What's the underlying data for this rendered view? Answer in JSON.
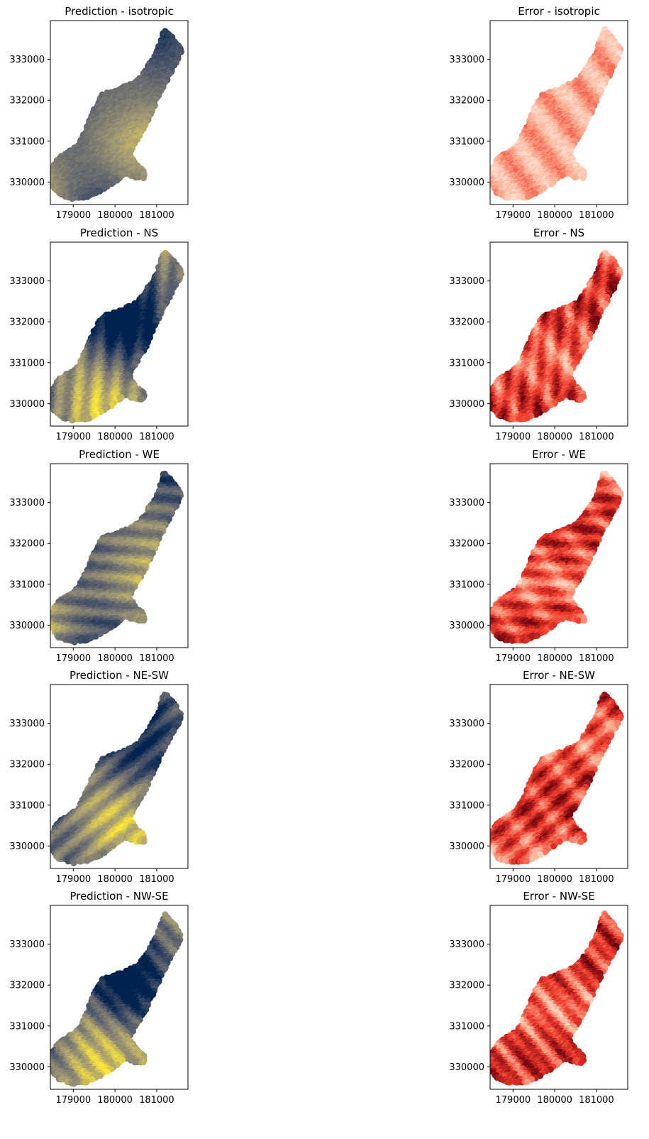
{
  "figure": {
    "layout": "5 rows x 2 columns; left column = kriging prediction maps (cividis colormap), right column = kriging error maps (Reds colormap)",
    "prediction_colormap": [
      "#00224e",
      "#575d6d",
      "#a59c74",
      "#fee838"
    ],
    "error_colormap": [
      "#fff5f0",
      "#fcae91",
      "#ef3b2c",
      "#67000d"
    ]
  },
  "chart_data": [
    {
      "type": "scatter",
      "title": "Prediction - isotropic",
      "variant": "isotropic",
      "kind": "prediction",
      "xticks": [
        179000,
        180000,
        181000
      ],
      "yticks": [
        330000,
        331000,
        332000,
        333000
      ],
      "xlim": [
        178450,
        181750
      ],
      "ylim": [
        329450,
        333950
      ],
      "grid": false
    },
    {
      "type": "scatter",
      "title": "Error - isotropic",
      "variant": "isotropic",
      "kind": "error",
      "xticks": [
        179000,
        180000,
        181000
      ],
      "yticks": [
        330000,
        331000,
        332000,
        333000
      ],
      "xlim": [
        178450,
        181750
      ],
      "ylim": [
        329450,
        333950
      ],
      "grid": false
    },
    {
      "type": "scatter",
      "title": "Prediction - NS",
      "variant": "NS",
      "kind": "prediction",
      "xticks": [
        179000,
        180000,
        181000
      ],
      "yticks": [
        330000,
        331000,
        332000,
        333000
      ],
      "xlim": [
        178450,
        181750
      ],
      "ylim": [
        329450,
        333950
      ],
      "grid": false
    },
    {
      "type": "scatter",
      "title": "Error - NS",
      "variant": "NS",
      "kind": "error",
      "xticks": [
        179000,
        180000,
        181000
      ],
      "yticks": [
        330000,
        331000,
        332000,
        333000
      ],
      "xlim": [
        178450,
        181750
      ],
      "ylim": [
        329450,
        333950
      ],
      "grid": false
    },
    {
      "type": "scatter",
      "title": "Prediction - WE",
      "variant": "WE",
      "kind": "prediction",
      "xticks": [
        179000,
        180000,
        181000
      ],
      "yticks": [
        330000,
        331000,
        332000,
        333000
      ],
      "xlim": [
        178450,
        181750
      ],
      "ylim": [
        329450,
        333950
      ],
      "grid": false
    },
    {
      "type": "scatter",
      "title": "Error - WE",
      "variant": "WE",
      "kind": "error",
      "xticks": [
        179000,
        180000,
        181000
      ],
      "yticks": [
        330000,
        331000,
        332000,
        333000
      ],
      "xlim": [
        178450,
        181750
      ],
      "ylim": [
        329450,
        333950
      ],
      "grid": false
    },
    {
      "type": "scatter",
      "title": "Prediction - NE-SW",
      "variant": "NE-SW",
      "kind": "prediction",
      "xticks": [
        179000,
        180000,
        181000
      ],
      "yticks": [
        330000,
        331000,
        332000,
        333000
      ],
      "xlim": [
        178450,
        181750
      ],
      "ylim": [
        329450,
        333950
      ],
      "grid": false
    },
    {
      "type": "scatter",
      "title": "Error - NE-SW",
      "variant": "NE-SW",
      "kind": "error",
      "xticks": [
        179000,
        180000,
        181000
      ],
      "yticks": [
        330000,
        331000,
        332000,
        333000
      ],
      "xlim": [
        178450,
        181750
      ],
      "ylim": [
        329450,
        333950
      ],
      "grid": false
    },
    {
      "type": "scatter",
      "title": "Prediction - NW-SE",
      "variant": "NW-SE",
      "kind": "prediction",
      "xticks": [
        179000,
        180000,
        181000
      ],
      "yticks": [
        330000,
        331000,
        332000,
        333000
      ],
      "xlim": [
        178450,
        181750
      ],
      "ylim": [
        329450,
        333950
      ],
      "grid": false
    },
    {
      "type": "scatter",
      "title": "Error - NW-SE",
      "variant": "NW-SE",
      "kind": "error",
      "xticks": [
        179000,
        180000,
        181000
      ],
      "yticks": [
        330000,
        331000,
        332000,
        333000
      ],
      "xlim": [
        178450,
        181750
      ],
      "ylim": [
        329450,
        333950
      ],
      "grid": false
    }
  ]
}
